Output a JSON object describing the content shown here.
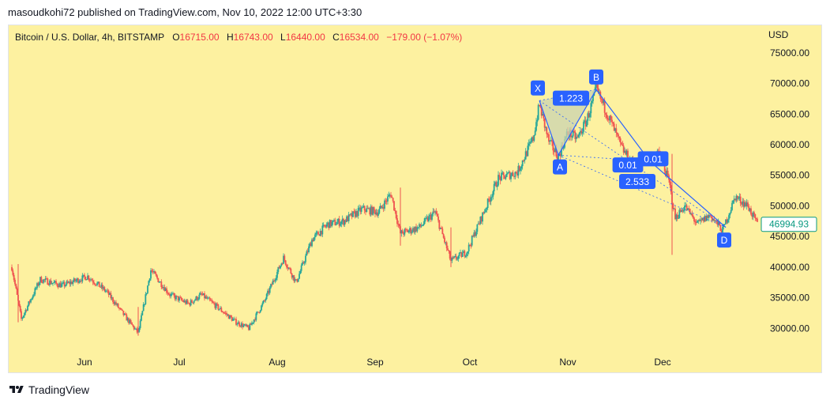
{
  "header": {
    "attribution": "masoudkohi72 published on TradingView.com, Nov 10, 2022 12:00 UTC+3:30"
  },
  "legend": {
    "symbol": "Bitcoin / U.S. Dollar, 4h, BITSTAMP",
    "o_label": "O",
    "o_value": "16715.00",
    "h_label": "H",
    "h_value": "16743.00",
    "l_label": "L",
    "l_value": "16440.00",
    "c_label": "C",
    "c_value": "16534.00",
    "change": "−179.00 (−1.07%)"
  },
  "footer": {
    "brand": "TradingView"
  },
  "colors": {
    "background": "#fdf1a0",
    "up": "#26a69a",
    "down": "#ef5350",
    "pattern": "#2962ff",
    "pattern_fill": "#c9d3b0",
    "price_label": "#089981"
  },
  "chart_data": {
    "type": "candlestick",
    "currency_label": "USD",
    "y_ticks": [
      "75000.00",
      "70000.00",
      "65000.00",
      "60000.00",
      "55000.00",
      "50000.00",
      "45000.00",
      "40000.00",
      "35000.00",
      "30000.00"
    ],
    "y_tick_values": [
      75000,
      70000,
      65000,
      60000,
      55000,
      50000,
      45000,
      40000,
      35000,
      30000
    ],
    "ylim": [
      26300,
      79500
    ],
    "x_labels": [
      "Jun",
      "Jul",
      "Aug",
      "Sep",
      "Oct",
      "Nov",
      "Dec"
    ],
    "x_label_dates": [
      "2022-06-01",
      "2022-07-01",
      "2022-08-01",
      "2022-09-01",
      "2022-10-01",
      "2022-11-01",
      "2022-12-01"
    ],
    "xlim": [
      "2022-05-08",
      "2023-01-01"
    ],
    "last_price": "46994.93",
    "last_price_value": 46994.93,
    "price_path": [
      [
        "2022-05-09",
        40000
      ],
      [
        "2022-05-12",
        31500
      ],
      [
        "2022-05-18",
        38000
      ],
      [
        "2022-05-25",
        37000
      ],
      [
        "2022-06-02",
        38500
      ],
      [
        "2022-06-08",
        36000
      ],
      [
        "2022-06-13",
        32500
      ],
      [
        "2022-06-18",
        29200
      ],
      [
        "2022-06-22",
        39500
      ],
      [
        "2022-06-28",
        35500
      ],
      [
        "2022-07-04",
        34000
      ],
      [
        "2022-07-08",
        35500
      ],
      [
        "2022-07-13",
        33500
      ],
      [
        "2022-07-19",
        31000
      ],
      [
        "2022-07-23",
        30000
      ],
      [
        "2022-07-28",
        34500
      ],
      [
        "2022-08-03",
        41500
      ],
      [
        "2022-08-07",
        37500
      ],
      [
        "2022-08-12",
        44500
      ],
      [
        "2022-08-17",
        47000
      ],
      [
        "2022-08-22",
        47500
      ],
      [
        "2022-08-28",
        49500
      ],
      [
        "2022-09-02",
        49000
      ],
      [
        "2022-09-06",
        52000
      ],
      [
        "2022-09-09",
        45500
      ],
      [
        "2022-09-15",
        46500
      ],
      [
        "2022-09-20",
        49000
      ],
      [
        "2022-09-25",
        41000
      ],
      [
        "2022-09-30",
        42500
      ],
      [
        "2022-10-05",
        48500
      ],
      [
        "2022-10-10",
        54500
      ],
      [
        "2022-10-16",
        55500
      ],
      [
        "2022-10-21",
        61000
      ],
      [
        "2022-10-23",
        66500
      ],
      [
        "2022-10-26",
        60500
      ],
      [
        "2022-10-29",
        58000
      ],
      [
        "2022-11-01",
        62000
      ],
      [
        "2022-11-04",
        61000
      ],
      [
        "2022-11-07",
        64000
      ],
      [
        "2022-11-10",
        69000
      ],
      [
        "2022-11-14",
        64500
      ],
      [
        "2022-11-18",
        59500
      ],
      [
        "2022-11-22",
        56500
      ],
      [
        "2022-11-26",
        57500
      ],
      [
        "2022-11-30",
        58500
      ],
      [
        "2022-12-03",
        54000
      ],
      [
        "2022-12-05",
        48000
      ],
      [
        "2022-12-08",
        50000
      ],
      [
        "2022-12-12",
        47000
      ],
      [
        "2022-12-16",
        48500
      ],
      [
        "2022-12-20",
        46000
      ],
      [
        "2022-12-24",
        51500
      ],
      [
        "2022-12-28",
        50000
      ],
      [
        "2022-12-31",
        47000
      ]
    ],
    "pattern": {
      "points": {
        "X": {
          "date": "2022-10-23",
          "price": 67200
        },
        "A": {
          "date": "2022-10-29",
          "price": 58300
        },
        "B": {
          "date": "2022-11-10",
          "price": 69000
        },
        "C": {
          "date": "2022-11-27",
          "price": 57300
        },
        "D": {
          "date": "2022-12-21",
          "price": 46500
        }
      },
      "labels": {
        "X": "X",
        "A": "A",
        "B": "B",
        "D": "D"
      },
      "ratios": [
        {
          "text": "1.223",
          "date": "2022-11-02",
          "price": 67600
        },
        {
          "text": "0.01",
          "date": "2022-11-20",
          "price": 56700
        },
        {
          "text": "0.01",
          "date": "2022-11-28",
          "price": 57700
        },
        {
          "text": "2.533",
          "date": "2022-11-23",
          "price": 54000
        }
      ]
    }
  }
}
